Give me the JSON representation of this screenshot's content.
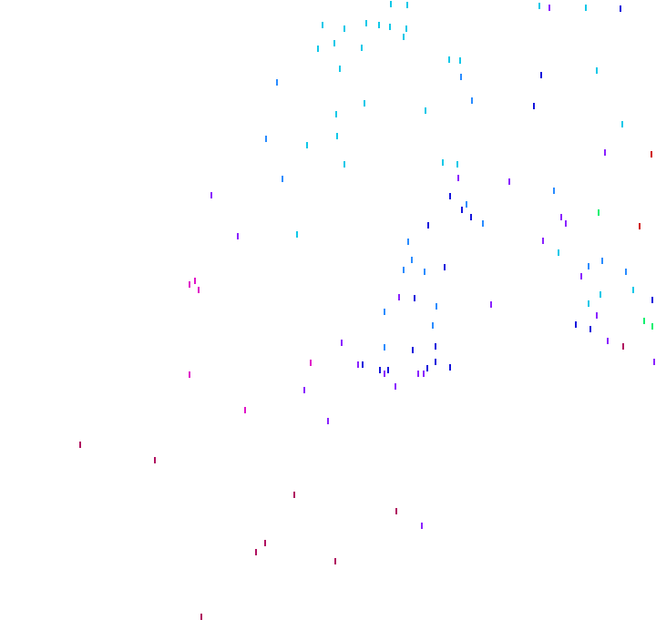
{
  "palette": {
    "cyan": "#10c8e8",
    "azure": "#2a8cff",
    "blue": "#1414dc",
    "violet": "#8a22ff",
    "magenta": "#e012c8",
    "crimson": "#b01060",
    "green": "#10f070",
    "red": "#d01010"
  }
}
